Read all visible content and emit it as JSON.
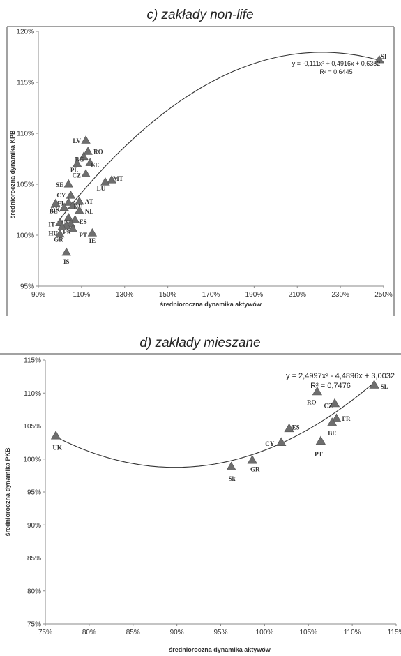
{
  "chart_data": [
    {
      "type": "scatter",
      "title": "c) zakłady non-life",
      "xlabel": "średnioroczna dynamika aktywów",
      "ylabel": "średnioroczna dynamika KPB",
      "xlim": [
        0.9,
        2.5
      ],
      "ylim": [
        0.95,
        1.2
      ],
      "xticks": [
        0.9,
        1.1,
        1.3,
        1.5,
        1.7,
        1.9,
        2.1,
        2.3,
        2.5
      ],
      "xtick_labels": [
        "90%",
        "110%",
        "130%",
        "150%",
        "170%",
        "190%",
        "210%",
        "230%",
        "250%"
      ],
      "yticks": [
        0.95,
        1.0,
        1.05,
        1.1,
        1.15,
        1.2
      ],
      "ytick_labels": [
        "95%",
        "100%",
        "105%",
        "110%",
        "115%",
        "120%"
      ],
      "trendline": {
        "type": "polynomial",
        "coefficients": [
          -0.111,
          0.4916,
          0.6352
        ],
        "x_range": [
          0.99,
          2.5
        ]
      },
      "equation_line1": "y = -0,111x² + 0,4916x + 0,6352",
      "equation_line2": "R² = 0,6445",
      "grid": false,
      "points": [
        {
          "label": "SI",
          "x": 2.48,
          "y": 1.172
        },
        {
          "label": "LV",
          "x": 1.12,
          "y": 1.093
        },
        {
          "label": "RO",
          "x": 1.13,
          "y": 1.082
        },
        {
          "label": "BG",
          "x": 1.11,
          "y": 1.077
        },
        {
          "label": "EE",
          "x": 1.14,
          "y": 1.071
        },
        {
          "label": "PL",
          "x": 1.08,
          "y": 1.07
        },
        {
          "label": "CZ",
          "x": 1.12,
          "y": 1.06
        },
        {
          "label": "MT",
          "x": 1.24,
          "y": 1.054
        },
        {
          "label": "LU",
          "x": 1.21,
          "y": 1.052
        },
        {
          "label": "SE",
          "x": 1.04,
          "y": 1.05
        },
        {
          "label": "CY",
          "x": 1.05,
          "y": 1.039
        },
        {
          "label": "AT",
          "x": 1.09,
          "y": 1.033
        },
        {
          "label": "FI",
          "x": 1.04,
          "y": 1.032
        },
        {
          "label": "BE",
          "x": 0.98,
          "y": 1.031
        },
        {
          "label": "DE",
          "x": 1.06,
          "y": 1.029
        },
        {
          "label": "DK",
          "x": 1.02,
          "y": 1.027
        },
        {
          "label": "NL",
          "x": 1.09,
          "y": 1.024
        },
        {
          "label": "UK",
          "x": 1.04,
          "y": 1.017
        },
        {
          "label": "ES",
          "x": 1.07,
          "y": 1.015
        },
        {
          "label": "IT",
          "x": 1.0,
          "y": 1.012
        },
        {
          "label": "SK",
          "x": 1.05,
          "y": 1.011
        },
        {
          "label": "FR",
          "x": 1.03,
          "y": 1.009
        },
        {
          "label": "HU",
          "x": 1.01,
          "y": 1.008
        },
        {
          "label": "PT",
          "x": 1.06,
          "y": 1.006
        },
        {
          "label": "IE",
          "x": 1.15,
          "y": 1.002
        },
        {
          "label": "GR",
          "x": 1.0,
          "y": 1.001
        },
        {
          "label": "IS",
          "x": 1.03,
          "y": 0.983
        }
      ]
    },
    {
      "type": "scatter",
      "title": "d) zakłady mieszane",
      "xlabel": "średnioroczna dynamika aktywów",
      "ylabel": "średnioroczna dynamika PKB",
      "xlim": [
        0.75,
        1.15
      ],
      "ylim": [
        0.75,
        1.15
      ],
      "xticks": [
        0.75,
        0.8,
        0.85,
        0.9,
        0.95,
        1.0,
        1.05,
        1.1,
        1.15
      ],
      "xtick_labels": [
        "75%",
        "80%",
        "85%",
        "90%",
        "95%",
        "100%",
        "105%",
        "110%",
        "115%"
      ],
      "yticks": [
        0.75,
        0.8,
        0.85,
        0.9,
        0.95,
        1.0,
        1.05,
        1.1,
        1.15
      ],
      "ytick_labels": [
        "75%",
        "80%",
        "85%",
        "90%",
        "95%",
        "100%",
        "105%",
        "110%",
        "115%"
      ],
      "trendline": {
        "type": "polynomial",
        "coefficients": [
          2.4997,
          -4.4896,
          3.0032
        ],
        "x_range": [
          0.76,
          1.126
        ]
      },
      "equation_line1": "y = 2,4997x² - 4,4896x + 3,0032",
      "equation_line2": "R² = 0,7476",
      "grid": false,
      "points": [
        {
          "label": "UK",
          "x": 0.762,
          "y": 1.035
        },
        {
          "label": "Sk",
          "x": 0.962,
          "y": 0.988
        },
        {
          "label": "GR",
          "x": 0.986,
          "y": 0.998
        },
        {
          "label": "CY",
          "x": 1.019,
          "y": 1.025
        },
        {
          "label": "ES",
          "x": 1.028,
          "y": 1.046
        },
        {
          "label": "RO",
          "x": 1.06,
          "y": 1.102
        },
        {
          "label": "CZ",
          "x": 1.08,
          "y": 1.084
        },
        {
          "label": "FR",
          "x": 1.082,
          "y": 1.061
        },
        {
          "label": "BE",
          "x": 1.077,
          "y": 1.055
        },
        {
          "label": "PT",
          "x": 1.064,
          "y": 1.027
        },
        {
          "label": "SL",
          "x": 1.125,
          "y": 1.112
        }
      ]
    }
  ]
}
